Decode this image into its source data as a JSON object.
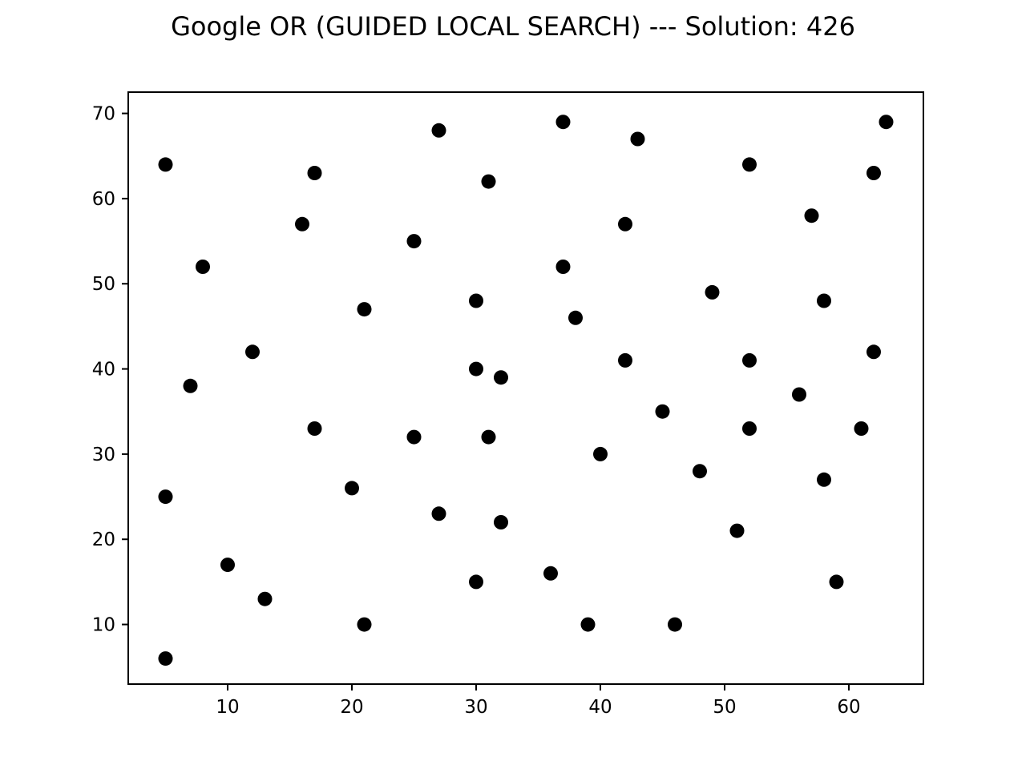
{
  "chart_data": {
    "type": "scatter",
    "title": "Google OR (GUIDED LOCAL SEARCH) --- Solution: 426",
    "xlabel": "",
    "ylabel": "",
    "xlim": [
      2,
      66
    ],
    "ylim": [
      3,
      72.5
    ],
    "xticks": [
      10,
      20,
      30,
      40,
      50,
      60
    ],
    "yticks": [
      10,
      20,
      30,
      40,
      50,
      60,
      70
    ],
    "grid": false,
    "legend": "none",
    "marker_color": "#000000",
    "points": [
      [
        5,
        64
      ],
      [
        5,
        25
      ],
      [
        5,
        6
      ],
      [
        7,
        38
      ],
      [
        8,
        52
      ],
      [
        10,
        17
      ],
      [
        12,
        42
      ],
      [
        13,
        13
      ],
      [
        16,
        57
      ],
      [
        17,
        63
      ],
      [
        17,
        33
      ],
      [
        20,
        26
      ],
      [
        21,
        47
      ],
      [
        21,
        10
      ],
      [
        25,
        55
      ],
      [
        25,
        32
      ],
      [
        27,
        68
      ],
      [
        27,
        23
      ],
      [
        30,
        48
      ],
      [
        30,
        40
      ],
      [
        30,
        15
      ],
      [
        31,
        62
      ],
      [
        31,
        32
      ],
      [
        32,
        39
      ],
      [
        32,
        22
      ],
      [
        36,
        16
      ],
      [
        37,
        69
      ],
      [
        37,
        52
      ],
      [
        38,
        46
      ],
      [
        39,
        10
      ],
      [
        40,
        30
      ],
      [
        42,
        57
      ],
      [
        42,
        41
      ],
      [
        43,
        67
      ],
      [
        45,
        35
      ],
      [
        46,
        10
      ],
      [
        48,
        28
      ],
      [
        49,
        49
      ],
      [
        51,
        21
      ],
      [
        52,
        64
      ],
      [
        52,
        41
      ],
      [
        52,
        33
      ],
      [
        56,
        37
      ],
      [
        57,
        58
      ],
      [
        58,
        48
      ],
      [
        58,
        27
      ],
      [
        59,
        15
      ],
      [
        61,
        33
      ],
      [
        62,
        63
      ],
      [
        62,
        42
      ],
      [
        63,
        69
      ]
    ]
  }
}
